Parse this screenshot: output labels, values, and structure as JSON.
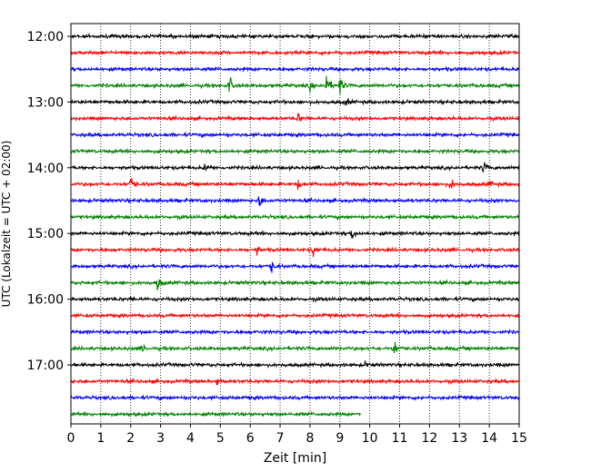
{
  "chart_data": {
    "type": "line",
    "description_kind": "helicorder seismogram",
    "xlabel": "Zeit  [min]",
    "ylabel": "UTC (Lokalzeit = UTC + 02:00)",
    "xlim": [
      0,
      15
    ],
    "x_ticks": [
      0,
      1,
      2,
      3,
      4,
      5,
      6,
      7,
      8,
      9,
      10,
      11,
      12,
      13,
      14,
      15
    ],
    "x_tick_labels": [
      "0",
      "1",
      "2",
      "3",
      "4",
      "5",
      "6",
      "7",
      "8",
      "9",
      "10",
      "11",
      "12",
      "13",
      "14",
      "15"
    ],
    "y_tick_labels": [
      "12:00",
      "13:00",
      "14:00",
      "15:00",
      "16:00",
      "17:00"
    ],
    "trace_interval_min": 15,
    "grid": {
      "x_dotted": true
    },
    "color_cycle": [
      "#000000",
      "#ff0000",
      "#0000ff",
      "#008000"
    ],
    "traces": [
      {
        "start": "12:00",
        "end_min": 15,
        "events": []
      },
      {
        "start": "12:15",
        "end_min": 15,
        "events": []
      },
      {
        "start": "12:30",
        "end_min": 15,
        "events": []
      },
      {
        "start": "12:45",
        "end_min": 15,
        "events": [
          {
            "t": 5.3,
            "amp": 1.0
          },
          {
            "t": 8.0,
            "amp": 0.4
          },
          {
            "t": 8.55,
            "amp": 1.3
          },
          {
            "t": 9.0,
            "amp": 0.9
          }
        ]
      },
      {
        "start": "13:00",
        "end_min": 15,
        "events": [
          {
            "t": 9.2,
            "amp": 0.35
          }
        ]
      },
      {
        "start": "13:15",
        "end_min": 15,
        "events": [
          {
            "t": 7.6,
            "amp": 0.5
          }
        ]
      },
      {
        "start": "13:30",
        "end_min": 15,
        "events": []
      },
      {
        "start": "13:45",
        "end_min": 15,
        "events": []
      },
      {
        "start": "14:00",
        "end_min": 15,
        "events": [
          {
            "t": 4.5,
            "amp": 0.5
          },
          {
            "t": 13.8,
            "amp": 0.6
          }
        ]
      },
      {
        "start": "14:15",
        "end_min": 15,
        "events": [
          {
            "t": 2.0,
            "amp": 0.9
          },
          {
            "t": 7.6,
            "amp": 0.4
          },
          {
            "t": 12.7,
            "amp": 0.7
          },
          {
            "t": 14.0,
            "amp": 0.4
          }
        ]
      },
      {
        "start": "14:30",
        "end_min": 15,
        "events": [
          {
            "t": 6.3,
            "amp": 0.8
          }
        ]
      },
      {
        "start": "14:45",
        "end_min": 15,
        "events": []
      },
      {
        "start": "15:00",
        "end_min": 15,
        "events": [
          {
            "t": 9.4,
            "amp": 0.6
          }
        ]
      },
      {
        "start": "15:15",
        "end_min": 15,
        "events": [
          {
            "t": 6.2,
            "amp": 0.5
          },
          {
            "t": 8.1,
            "amp": 0.7
          }
        ]
      },
      {
        "start": "15:30",
        "end_min": 15,
        "events": [
          {
            "t": 6.7,
            "amp": 0.7
          }
        ]
      },
      {
        "start": "15:45",
        "end_min": 15,
        "events": [
          {
            "t": 2.9,
            "amp": 0.8
          }
        ]
      },
      {
        "start": "16:00",
        "end_min": 15,
        "events": [
          {
            "t": 2.0,
            "amp": 0.3
          }
        ]
      },
      {
        "start": "16:15",
        "end_min": 15,
        "events": []
      },
      {
        "start": "16:30",
        "end_min": 15,
        "events": []
      },
      {
        "start": "16:45",
        "end_min": 15,
        "events": [
          {
            "t": 2.4,
            "amp": 0.4
          },
          {
            "t": 10.8,
            "amp": 1.0
          }
        ]
      },
      {
        "start": "17:00",
        "end_min": 15,
        "events": [
          {
            "t": 9.8,
            "amp": 0.3
          }
        ]
      },
      {
        "start": "17:15",
        "end_min": 15,
        "events": [
          {
            "t": 4.9,
            "amp": 0.5
          }
        ]
      },
      {
        "start": "17:30",
        "end_min": 15,
        "events": []
      },
      {
        "start": "17:45",
        "end_min": 9.7,
        "events": []
      }
    ]
  }
}
